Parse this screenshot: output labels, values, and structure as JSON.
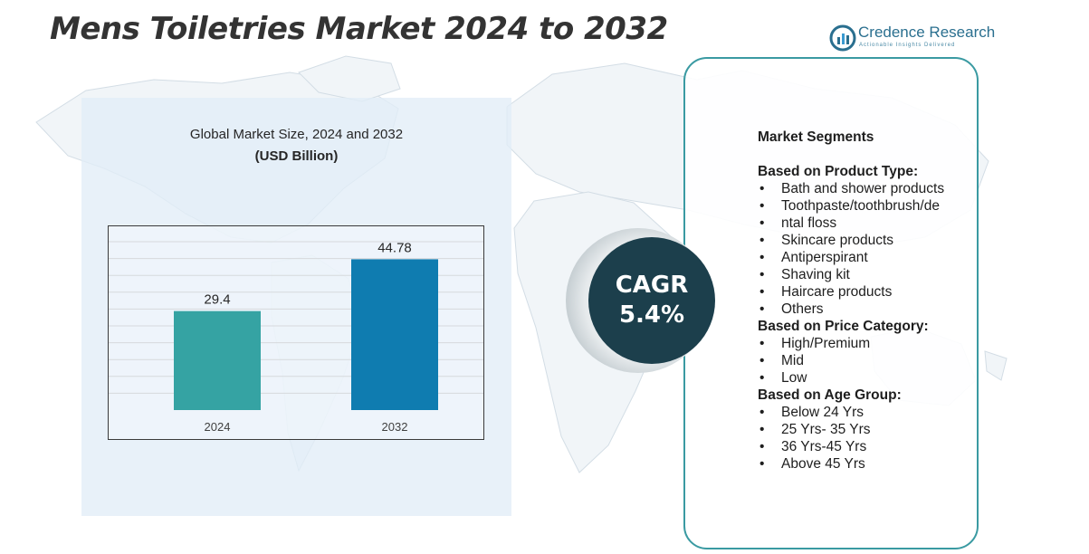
{
  "title": "Mens Toiletries Market 2024 to 2032",
  "logo": {
    "name": "Credence Research",
    "tagline": "Actionable Insights Delivered"
  },
  "colors": {
    "title": "#333333",
    "bar_2024": "#35a3a3",
    "bar_2032": "#0f7cb0",
    "cagr_circle": "#1c3f4c",
    "panel_border": "#3a9aa2",
    "chart_panel": "#e2edf7"
  },
  "chart_data": {
    "type": "bar",
    "title": "Global Market Size, 2024 and 2032",
    "subtitle": "(USD Billion)",
    "categories": [
      "2024",
      "2032"
    ],
    "values": [
      29.4,
      44.78
    ],
    "data_labels": [
      "29.4",
      "44.78"
    ],
    "ylim": [
      0,
      50
    ],
    "grid": true
  },
  "cagr": {
    "label": "CAGR",
    "value": "5.4%"
  },
  "segments": {
    "title": "Market Segments",
    "groups": [
      {
        "title": "Based on Product Type:",
        "items": [
          "Bath and shower products",
          "Toothpaste/toothbrush/de",
          "ntal floss",
          "Skincare products",
          "Antiperspirant",
          "Shaving kit",
          "Haircare products",
          "Others"
        ]
      },
      {
        "title": "Based on Price Category:",
        "items": [
          "High/Premium",
          "Mid",
          "Low"
        ]
      },
      {
        "title": "Based on Age Group:",
        "items": [
          "Below 24 Yrs",
          "25 Yrs- 35 Yrs",
          "36 Yrs-45 Yrs",
          "Above 45 Yrs"
        ]
      }
    ]
  }
}
